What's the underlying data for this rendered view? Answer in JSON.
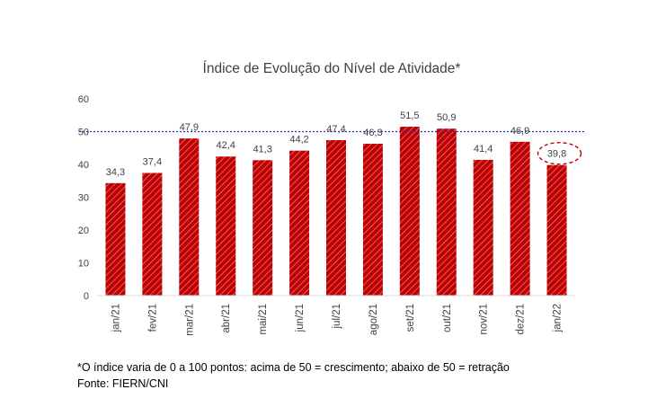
{
  "chart_data": {
    "type": "bar",
    "title": "Índice de Evolução do Nível de Atividade*",
    "categories": [
      "jan/21",
      "fev/21",
      "mar/21",
      "abr/21",
      "mai/21",
      "jun/21",
      "jul/21",
      "ago/21",
      "set/21",
      "out/21",
      "nov/21",
      "dez/21",
      "jan/22"
    ],
    "values": [
      34.3,
      37.4,
      47.9,
      42.4,
      41.3,
      44.2,
      47.4,
      46.3,
      51.5,
      50.9,
      41.4,
      46.9,
      39.8
    ],
    "value_labels": [
      "34,3",
      "37,4",
      "47,9",
      "42,4",
      "41,3",
      "44,2",
      "47,4",
      "46,3",
      "51,5",
      "50,9",
      "41,4",
      "46,9",
      "39,8"
    ],
    "yticks": [
      0,
      10,
      20,
      30,
      40,
      50,
      60
    ],
    "ylim": [
      0,
      60
    ],
    "reference_line": 50,
    "highlighted_category": "jan/22",
    "grid": false,
    "legend": "none",
    "bar_color": "#c00000",
    "bar_pattern": "diagonal-hatch",
    "reference_line_color": "#2f2fa8"
  },
  "footnotes": {
    "note": "*O índice varia de 0 a 100 pontos: acima de 50 = crescimento; abaixo de 50 = retração",
    "source": "Fonte: FIERN/CNI"
  }
}
